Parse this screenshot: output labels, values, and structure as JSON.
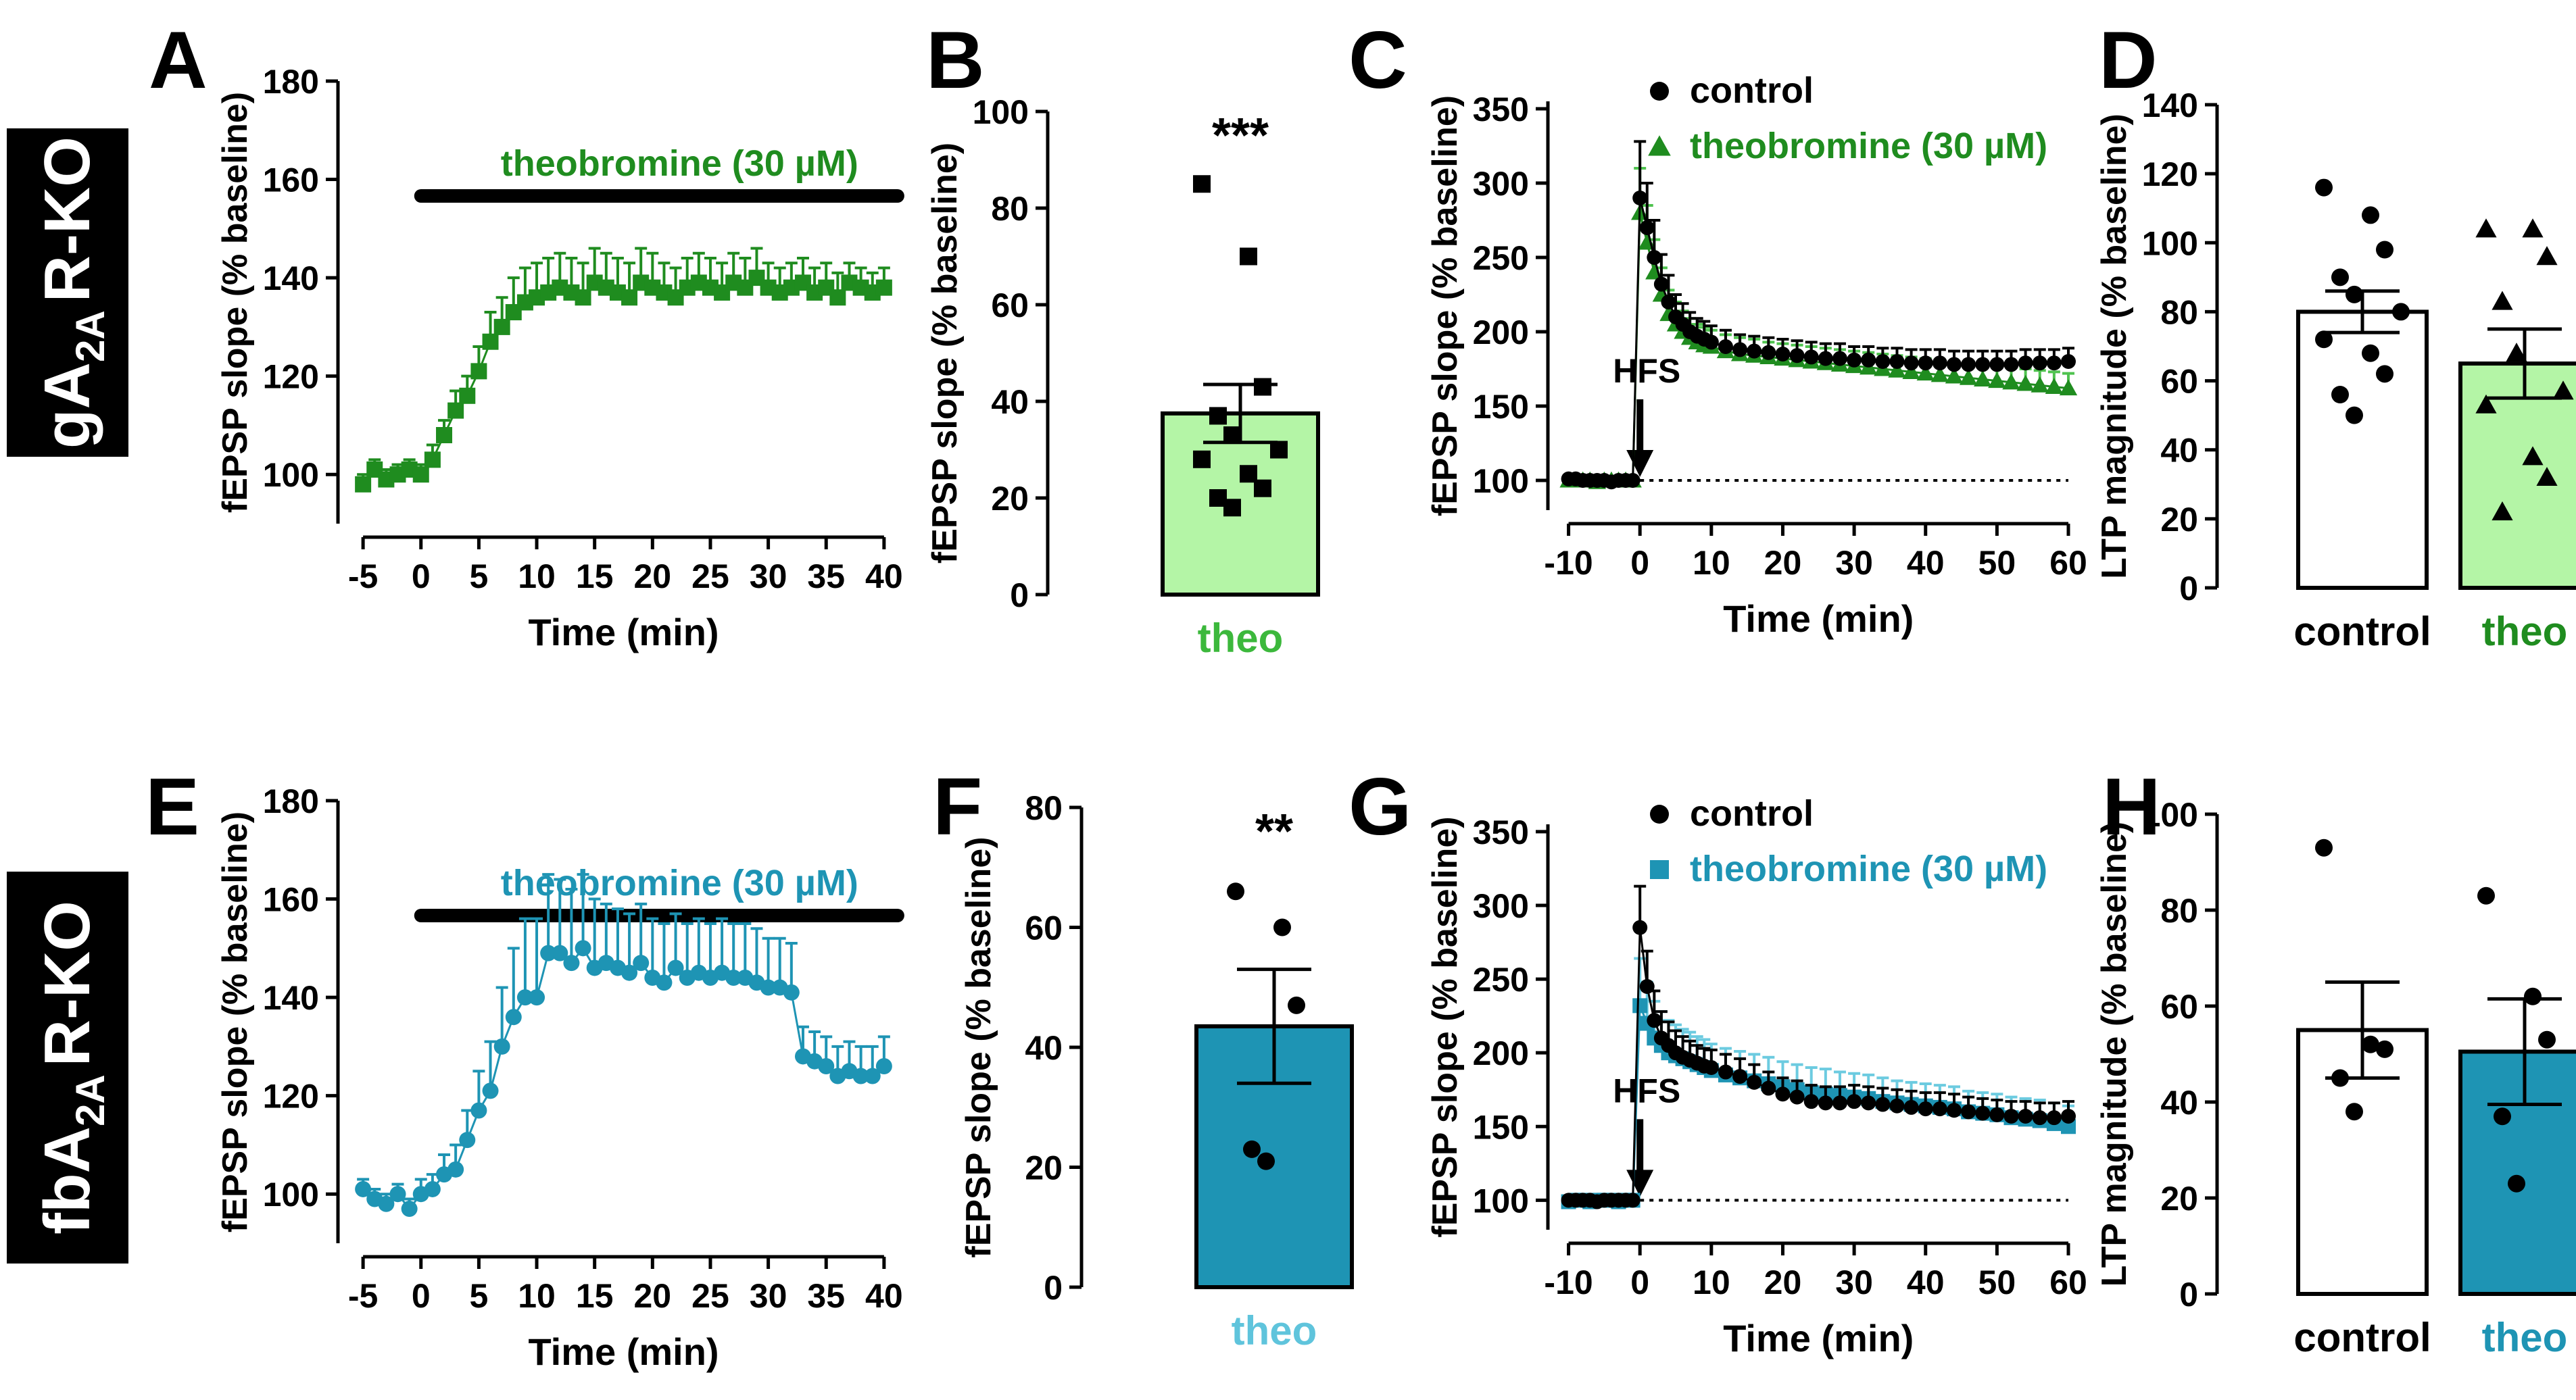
{
  "colors": {
    "green_dark": "#1f8c1f",
    "green_light": "#b4f5a6",
    "green_text": "#3cb83c",
    "teal": "#1e94b4",
    "teal_light": "#5fc4dc",
    "black": "#000000"
  },
  "row_labels": {
    "top": {
      "pre": "gA",
      "sub": "2A",
      "post": "R-KO"
    },
    "bottom": {
      "pre": "fbA",
      "sub": "2A",
      "post": "R-KO"
    }
  },
  "chart_data": [
    {
      "panel": "A",
      "type": "line",
      "ylabel": "fEPSP slope (% baseline)",
      "xlabel": "Time (min)",
      "xlim": [
        -6,
        41
      ],
      "ylim": [
        90,
        180
      ],
      "xticks": [
        -5,
        0,
        5,
        10,
        15,
        20,
        25,
        30,
        35,
        40
      ],
      "yticks": [
        100,
        120,
        140,
        160,
        180
      ],
      "drug_label": "theobromine (30 µM)",
      "drug_bar": [
        0,
        40
      ],
      "marker": "square",
      "color": "green_dark",
      "series": {
        "x": [
          -5,
          -4,
          -3,
          -2,
          -1,
          0,
          1,
          2,
          3,
          4,
          5,
          6,
          7,
          8,
          9,
          10,
          11,
          12,
          13,
          14,
          15,
          16,
          17,
          18,
          19,
          20,
          21,
          22,
          23,
          24,
          25,
          26,
          27,
          28,
          29,
          30,
          31,
          32,
          33,
          34,
          35,
          36,
          37,
          38,
          39,
          40
        ],
        "y": [
          98,
          101,
          99,
          100,
          101,
          100,
          103,
          108,
          113,
          116,
          121,
          127,
          130,
          133,
          135,
          136,
          137,
          138,
          137,
          136,
          139,
          138,
          137,
          136,
          139,
          138,
          137,
          136,
          138,
          139,
          138,
          137,
          139,
          138,
          140,
          138,
          137,
          138,
          139,
          137,
          138,
          136,
          139,
          138,
          137,
          138
        ],
        "err": [
          2,
          2,
          2,
          2,
          2,
          2,
          3,
          3,
          4,
          4,
          5,
          6,
          6,
          7,
          7,
          7,
          7,
          7,
          7,
          7,
          7,
          7,
          7,
          7,
          7,
          7,
          6,
          6,
          6,
          6,
          6,
          6,
          6,
          6,
          6,
          5,
          5,
          5,
          5,
          5,
          5,
          5,
          4,
          4,
          4,
          4
        ]
      }
    },
    {
      "panel": "B",
      "type": "bar",
      "ylabel": "fEPSP slope (% baseline)",
      "categories": [
        "theo"
      ],
      "ylim": [
        0,
        100
      ],
      "yticks": [
        0,
        20,
        40,
        60,
        80,
        100
      ],
      "mean": 37.5,
      "sem": 6,
      "significance": "***",
      "points": [
        85,
        70,
        43,
        37,
        33,
        30,
        28,
        25,
        22,
        20,
        18
      ],
      "marker": "square",
      "fill": "green_light",
      "label_color": "green_text"
    },
    {
      "panel": "C",
      "type": "line",
      "ylabel": "fEPSP slope (% baseline)",
      "xlabel": "Time (min)",
      "xlim": [
        -11,
        60
      ],
      "ylim": [
        80,
        355
      ],
      "xticks": [
        -10,
        0,
        10,
        20,
        30,
        40,
        50,
        60
      ],
      "yticks": [
        100,
        150,
        200,
        250,
        300,
        350
      ],
      "annotation": "HFS",
      "annotation_x": 0,
      "baseline": 100,
      "legend": [
        {
          "name": "control",
          "marker": "circle",
          "color": "black"
        },
        {
          "name": "theobromine (30 µM)",
          "marker": "triangle",
          "color": "green_dark"
        }
      ],
      "series": [
        {
          "name": "control",
          "marker": "circle",
          "color": "black",
          "x": [
            -10,
            -9,
            -8,
            -7,
            -6,
            -5,
            -4,
            -3,
            -2,
            -1,
            0,
            1,
            2,
            3,
            4,
            5,
            6,
            7,
            8,
            9,
            10,
            12,
            14,
            16,
            18,
            20,
            22,
            24,
            26,
            28,
            30,
            32,
            34,
            36,
            38,
            40,
            42,
            44,
            46,
            48,
            50,
            52,
            54,
            56,
            58,
            60
          ],
          "y": [
            101,
            101,
            100,
            100,
            100,
            100,
            99,
            100,
            100,
            100,
            290,
            270,
            250,
            232,
            220,
            210,
            205,
            200,
            197,
            195,
            193,
            190,
            188,
            187,
            186,
            185,
            184,
            183,
            182,
            182,
            181,
            181,
            180,
            180,
            179,
            179,
            179,
            178,
            178,
            178,
            178,
            178,
            179,
            179,
            179,
            180
          ],
          "err": [
            2,
            2,
            2,
            2,
            2,
            2,
            2,
            2,
            2,
            2,
            38,
            30,
            25,
            20,
            18,
            15,
            14,
            13,
            12,
            12,
            11,
            11,
            10,
            10,
            10,
            10,
            10,
            10,
            10,
            10,
            9,
            9,
            9,
            9,
            9,
            9,
            9,
            9,
            9,
            9,
            9,
            9,
            9,
            9,
            9,
            9
          ]
        },
        {
          "name": "theobromine (30 µM)",
          "marker": "triangle",
          "color": "green_dark",
          "x": [
            -10,
            -9,
            -8,
            -7,
            -6,
            -5,
            -4,
            -3,
            -2,
            -1,
            0,
            1,
            2,
            3,
            4,
            5,
            6,
            7,
            8,
            9,
            10,
            12,
            14,
            16,
            18,
            20,
            22,
            24,
            26,
            28,
            30,
            32,
            34,
            36,
            38,
            40,
            42,
            44,
            46,
            48,
            50,
            52,
            54,
            56,
            58,
            60
          ],
          "y": [
            100,
            100,
            100,
            100,
            99,
            100,
            100,
            100,
            100,
            100,
            280,
            260,
            240,
            225,
            212,
            205,
            200,
            196,
            193,
            191,
            190,
            187,
            185,
            184,
            183,
            182,
            181,
            180,
            179,
            178,
            177,
            176,
            175,
            174,
            173,
            172,
            171,
            170,
            169,
            168,
            167,
            166,
            165,
            164,
            163,
            162
          ],
          "err": [
            2,
            2,
            2,
            2,
            2,
            2,
            2,
            2,
            2,
            2,
            30,
            25,
            22,
            18,
            16,
            15,
            14,
            13,
            12,
            12,
            11,
            11,
            11,
            11,
            10,
            10,
            10,
            10,
            10,
            10,
            10,
            10,
            10,
            10,
            10,
            10,
            10,
            10,
            10,
            10,
            10,
            10,
            10,
            10,
            10,
            10
          ]
        }
      ]
    },
    {
      "panel": "D",
      "type": "bar",
      "ylabel": "LTP magnitude (% baseline)",
      "categories": [
        "control",
        "theo"
      ],
      "ylim": [
        0,
        140
      ],
      "yticks": [
        0,
        20,
        40,
        60,
        80,
        100,
        120,
        140
      ],
      "means": [
        80,
        65
      ],
      "sems": [
        6,
        10
      ],
      "points": [
        [
          116,
          108,
          98,
          90,
          85,
          80,
          72,
          68,
          62,
          56,
          50
        ],
        [
          104,
          104,
          96,
          83,
          68,
          57,
          53,
          38,
          32,
          22
        ]
      ],
      "markers": [
        "circle",
        "triangle"
      ],
      "fills": [
        "#ffffff",
        "green_light"
      ],
      "label_colors": [
        "black",
        "green_dark"
      ]
    },
    {
      "panel": "E",
      "type": "line",
      "ylabel": "fEPSP slope (% baseline)",
      "xlabel": "Time (min)",
      "xlim": [
        -6,
        41
      ],
      "ylim": [
        90,
        180
      ],
      "xticks": [
        -5,
        0,
        5,
        10,
        15,
        20,
        25,
        30,
        35,
        40
      ],
      "yticks": [
        100,
        120,
        140,
        160,
        180
      ],
      "drug_label": "theobromine (30 µM)",
      "drug_bar": [
        0,
        40
      ],
      "marker": "circle",
      "color": "teal",
      "series": {
        "x": [
          -5,
          -4,
          -3,
          -2,
          -1,
          0,
          1,
          2,
          3,
          4,
          5,
          6,
          7,
          8,
          9,
          10,
          11,
          12,
          13,
          14,
          15,
          16,
          17,
          18,
          19,
          20,
          21,
          22,
          23,
          24,
          25,
          26,
          27,
          28,
          29,
          30,
          31,
          32,
          33,
          34,
          35,
          36,
          37,
          38,
          39,
          40
        ],
        "y": [
          101,
          99,
          98,
          100,
          97,
          100,
          101,
          104,
          105,
          111,
          117,
          121,
          130,
          136,
          140,
          140,
          149,
          149,
          147,
          150,
          146,
          147,
          146,
          145,
          147,
          144,
          143,
          146,
          144,
          145,
          144,
          145,
          144,
          144,
          143,
          142,
          142,
          141,
          128,
          127,
          126,
          124,
          125,
          124,
          124,
          126
        ],
        "err": [
          2,
          2,
          2,
          2,
          2,
          3,
          3,
          4,
          5,
          6,
          8,
          10,
          12,
          14,
          16,
          16,
          16,
          15,
          15,
          15,
          14,
          12,
          12,
          12,
          12,
          12,
          12,
          11,
          11,
          11,
          11,
          11,
          11,
          11,
          11,
          10,
          10,
          10,
          6,
          6,
          6,
          6,
          6,
          6,
          6,
          6
        ]
      }
    },
    {
      "panel": "F",
      "type": "bar",
      "ylabel": "fEPSP slope (% baseline)",
      "categories": [
        "theo"
      ],
      "ylim": [
        0,
        80
      ],
      "yticks": [
        0,
        20,
        40,
        60,
        80
      ],
      "mean": 43.5,
      "sem": 9.5,
      "significance": "**",
      "points": [
        66,
        60,
        47,
        23,
        21
      ],
      "marker": "circle",
      "fill": "teal",
      "label_color": "teal_light"
    },
    {
      "panel": "G",
      "type": "line",
      "ylabel": "fEPSP slope (% baseline)",
      "xlabel": "Time (min)",
      "xlim": [
        -11,
        60
      ],
      "ylim": [
        80,
        355
      ],
      "xticks": [
        -10,
        0,
        10,
        20,
        30,
        40,
        50,
        60
      ],
      "yticks": [
        100,
        150,
        200,
        250,
        300,
        350
      ],
      "annotation": "HFS",
      "annotation_x": 0,
      "baseline": 100,
      "legend": [
        {
          "name": "control",
          "marker": "circle",
          "color": "black"
        },
        {
          "name": "theobromine (30 µM)",
          "marker": "square",
          "color": "teal"
        }
      ],
      "series": [
        {
          "name": "control",
          "marker": "circle",
          "color": "black",
          "x": [
            -10,
            -9,
            -8,
            -7,
            -6,
            -5,
            -4,
            -3,
            -2,
            -1,
            0,
            1,
            2,
            3,
            4,
            5,
            6,
            7,
            8,
            9,
            10,
            12,
            14,
            16,
            18,
            20,
            22,
            24,
            26,
            28,
            30,
            32,
            34,
            36,
            38,
            40,
            42,
            44,
            46,
            48,
            50,
            52,
            54,
            56,
            58,
            60
          ],
          "y": [
            100,
            100,
            100,
            100,
            99,
            100,
            100,
            100,
            100,
            100,
            285,
            245,
            222,
            210,
            205,
            200,
            197,
            195,
            193,
            191,
            190,
            187,
            184,
            180,
            176,
            172,
            170,
            167,
            166,
            166,
            167,
            166,
            165,
            164,
            163,
            162,
            162,
            161,
            160,
            159,
            158,
            157,
            157,
            156,
            156,
            157
          ],
          "err": [
            2,
            2,
            2,
            2,
            2,
            2,
            2,
            2,
            2,
            2,
            28,
            24,
            20,
            18,
            16,
            15,
            14,
            13,
            12,
            12,
            12,
            12,
            12,
            12,
            11,
            11,
            11,
            11,
            11,
            11,
            11,
            11,
            11,
            11,
            11,
            11,
            11,
            11,
            10,
            10,
            10,
            10,
            10,
            10,
            10,
            10
          ]
        },
        {
          "name": "theobromine (30 µM)",
          "marker": "square",
          "color": "teal",
          "x": [
            -10,
            -9,
            -8,
            -7,
            -6,
            -5,
            -4,
            -3,
            -2,
            -1,
            0,
            1,
            2,
            3,
            4,
            5,
            6,
            7,
            8,
            9,
            10,
            12,
            14,
            16,
            18,
            20,
            22,
            24,
            26,
            28,
            30,
            32,
            34,
            36,
            38,
            40,
            42,
            44,
            46,
            48,
            50,
            52,
            54,
            56,
            58,
            60
          ],
          "y": [
            99,
            100,
            100,
            99,
            100,
            100,
            100,
            99,
            100,
            100,
            232,
            220,
            210,
            205,
            200,
            198,
            196,
            194,
            192,
            190,
            188,
            185,
            183,
            181,
            179,
            177,
            175,
            173,
            172,
            171,
            170,
            169,
            167,
            166,
            165,
            164,
            163,
            162,
            160,
            159,
            158,
            156,
            155,
            154,
            152,
            150
          ],
          "err": [
            2,
            2,
            2,
            2,
            2,
            2,
            2,
            2,
            2,
            2,
            32,
            28,
            25,
            23,
            22,
            21,
            20,
            20,
            19,
            19,
            18,
            18,
            18,
            18,
            18,
            17,
            17,
            17,
            17,
            16,
            16,
            16,
            16,
            15,
            15,
            15,
            15,
            15,
            14,
            14,
            14,
            14,
            14,
            14,
            14,
            14
          ]
        }
      ]
    },
    {
      "panel": "H",
      "type": "bar",
      "ylabel": "LTP magnitude (% baseline)",
      "categories": [
        "control",
        "theo"
      ],
      "ylim": [
        0,
        100
      ],
      "yticks": [
        0,
        20,
        40,
        60,
        80,
        100
      ],
      "means": [
        55,
        50.5
      ],
      "sems": [
        10,
        11
      ],
      "points": [
        [
          93,
          52,
          51,
          45,
          38
        ],
        [
          83,
          62,
          53,
          37,
          23
        ]
      ],
      "markers": [
        "circle",
        "circle"
      ],
      "fills": [
        "#ffffff",
        "teal"
      ],
      "label_colors": [
        "black",
        "teal"
      ]
    }
  ]
}
